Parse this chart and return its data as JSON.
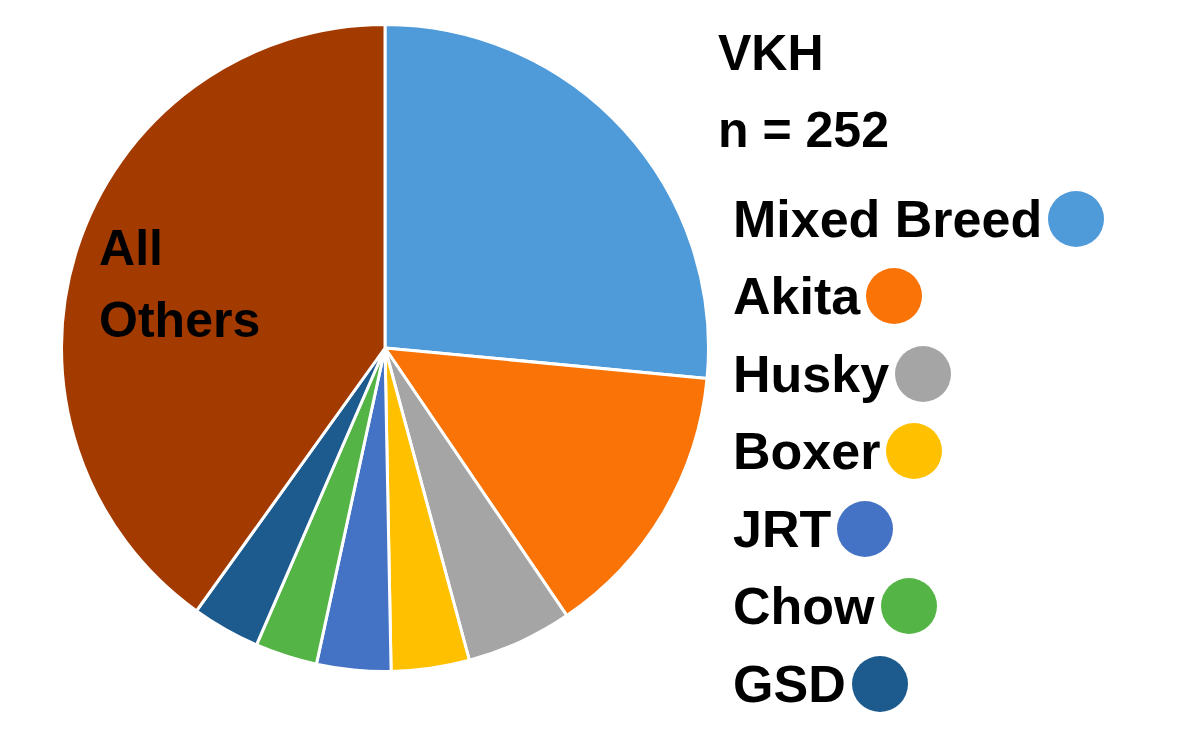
{
  "chart_data": {
    "type": "pie",
    "title": "VKH",
    "subtitle": "n = 252",
    "categories": [
      "Mixed Breed",
      "Akita",
      "Husky",
      "Boxer",
      "JRT",
      "Chow",
      "GSD",
      "All Others"
    ],
    "values": [
      26.5,
      14.0,
      5.3,
      3.9,
      3.7,
      3.1,
      3.4,
      40.1
    ],
    "colors": [
      "#4f9ad8",
      "#f97306",
      "#a5a5a5",
      "#ffc000",
      "#4472c4",
      "#55b446",
      "#1d5a8e",
      "#a33a00"
    ],
    "legend": "right"
  }
}
